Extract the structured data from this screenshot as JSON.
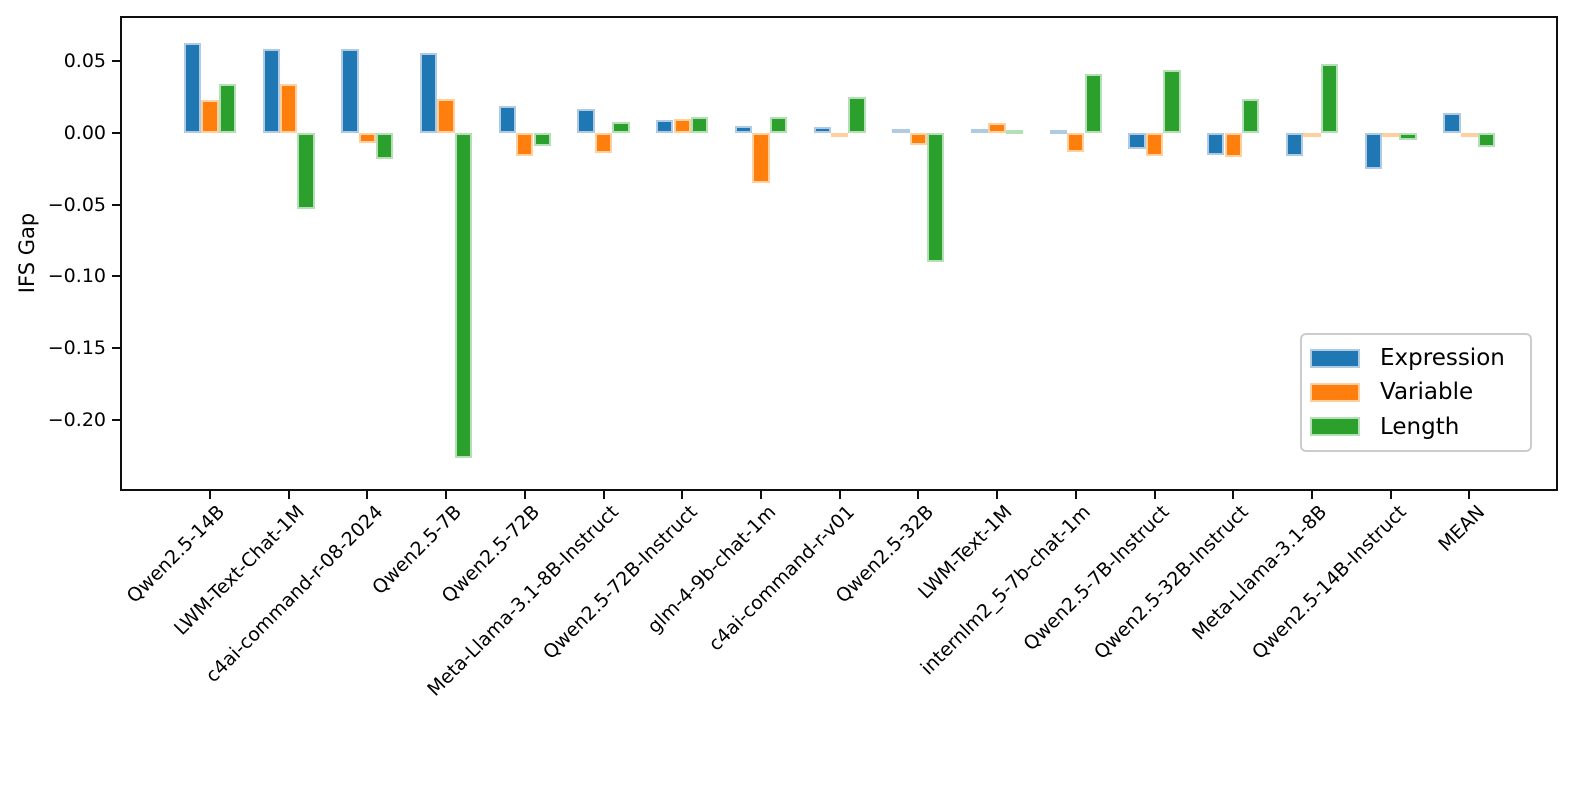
{
  "chart_data": {
    "type": "bar",
    "title": "",
    "xlabel": "",
    "ylabel": "IFS Gap",
    "grid": false,
    "ylim": [
      -0.249,
      0.081
    ],
    "yticks": [
      0.05,
      0.0,
      -0.05,
      -0.1,
      -0.15,
      -0.2
    ],
    "ytick_labels": [
      "0.05",
      "0.00",
      "−0.05",
      "−0.10",
      "−0.15",
      "−0.20"
    ],
    "categories": [
      "Qwen2.5-14B",
      "LWM-Text-Chat-1M",
      "c4ai-command-r-08-2024",
      "Qwen2.5-7B",
      "Qwen2.5-72B",
      "Meta-Llama-3.1-8B-Instruct",
      "Qwen2.5-72B-Instruct",
      "glm-4-9b-chat-1m",
      "c4ai-command-r-v01",
      "Qwen2.5-32B",
      "LWM-Text-1M",
      "internlm2_5-7b-chat-1m",
      "Qwen2.5-7B-Instruct",
      "Qwen2.5-32B-Instruct",
      "Meta-Llama-3.1-8B",
      "Qwen2.5-14B-Instruct",
      "MEAN"
    ],
    "series": [
      {
        "name": "Expression",
        "color": "#1f77b4",
        "edge_color": "#aecbe3",
        "values": [
          0.063,
          0.059,
          0.059,
          0.056,
          0.019,
          0.017,
          0.009,
          0.005,
          0.004,
          0.003,
          0.003,
          0.002,
          -0.011,
          -0.015,
          -0.016,
          -0.025,
          0.014
        ]
      },
      {
        "name": "Variable",
        "color": "#ff7f0e",
        "edge_color": "#ffcf9e",
        "values": [
          0.023,
          0.034,
          -0.007,
          0.024,
          -0.016,
          -0.014,
          0.01,
          -0.035,
          -0.003,
          -0.008,
          0.007,
          -0.013,
          -0.016,
          -0.017,
          -0.002,
          -0.001,
          -0.003
        ]
      },
      {
        "name": "Length",
        "color": "#2ca02c",
        "edge_color": "#b5dfb5",
        "values": [
          0.034,
          -0.053,
          -0.018,
          -0.227,
          -0.009,
          0.008,
          0.011,
          0.011,
          0.025,
          -0.09,
          0.002,
          0.041,
          0.044,
          0.024,
          0.048,
          -0.005,
          -0.01
        ]
      }
    ],
    "legend": {
      "position": "lower right",
      "entries": [
        "Expression",
        "Variable",
        "Length"
      ]
    }
  }
}
